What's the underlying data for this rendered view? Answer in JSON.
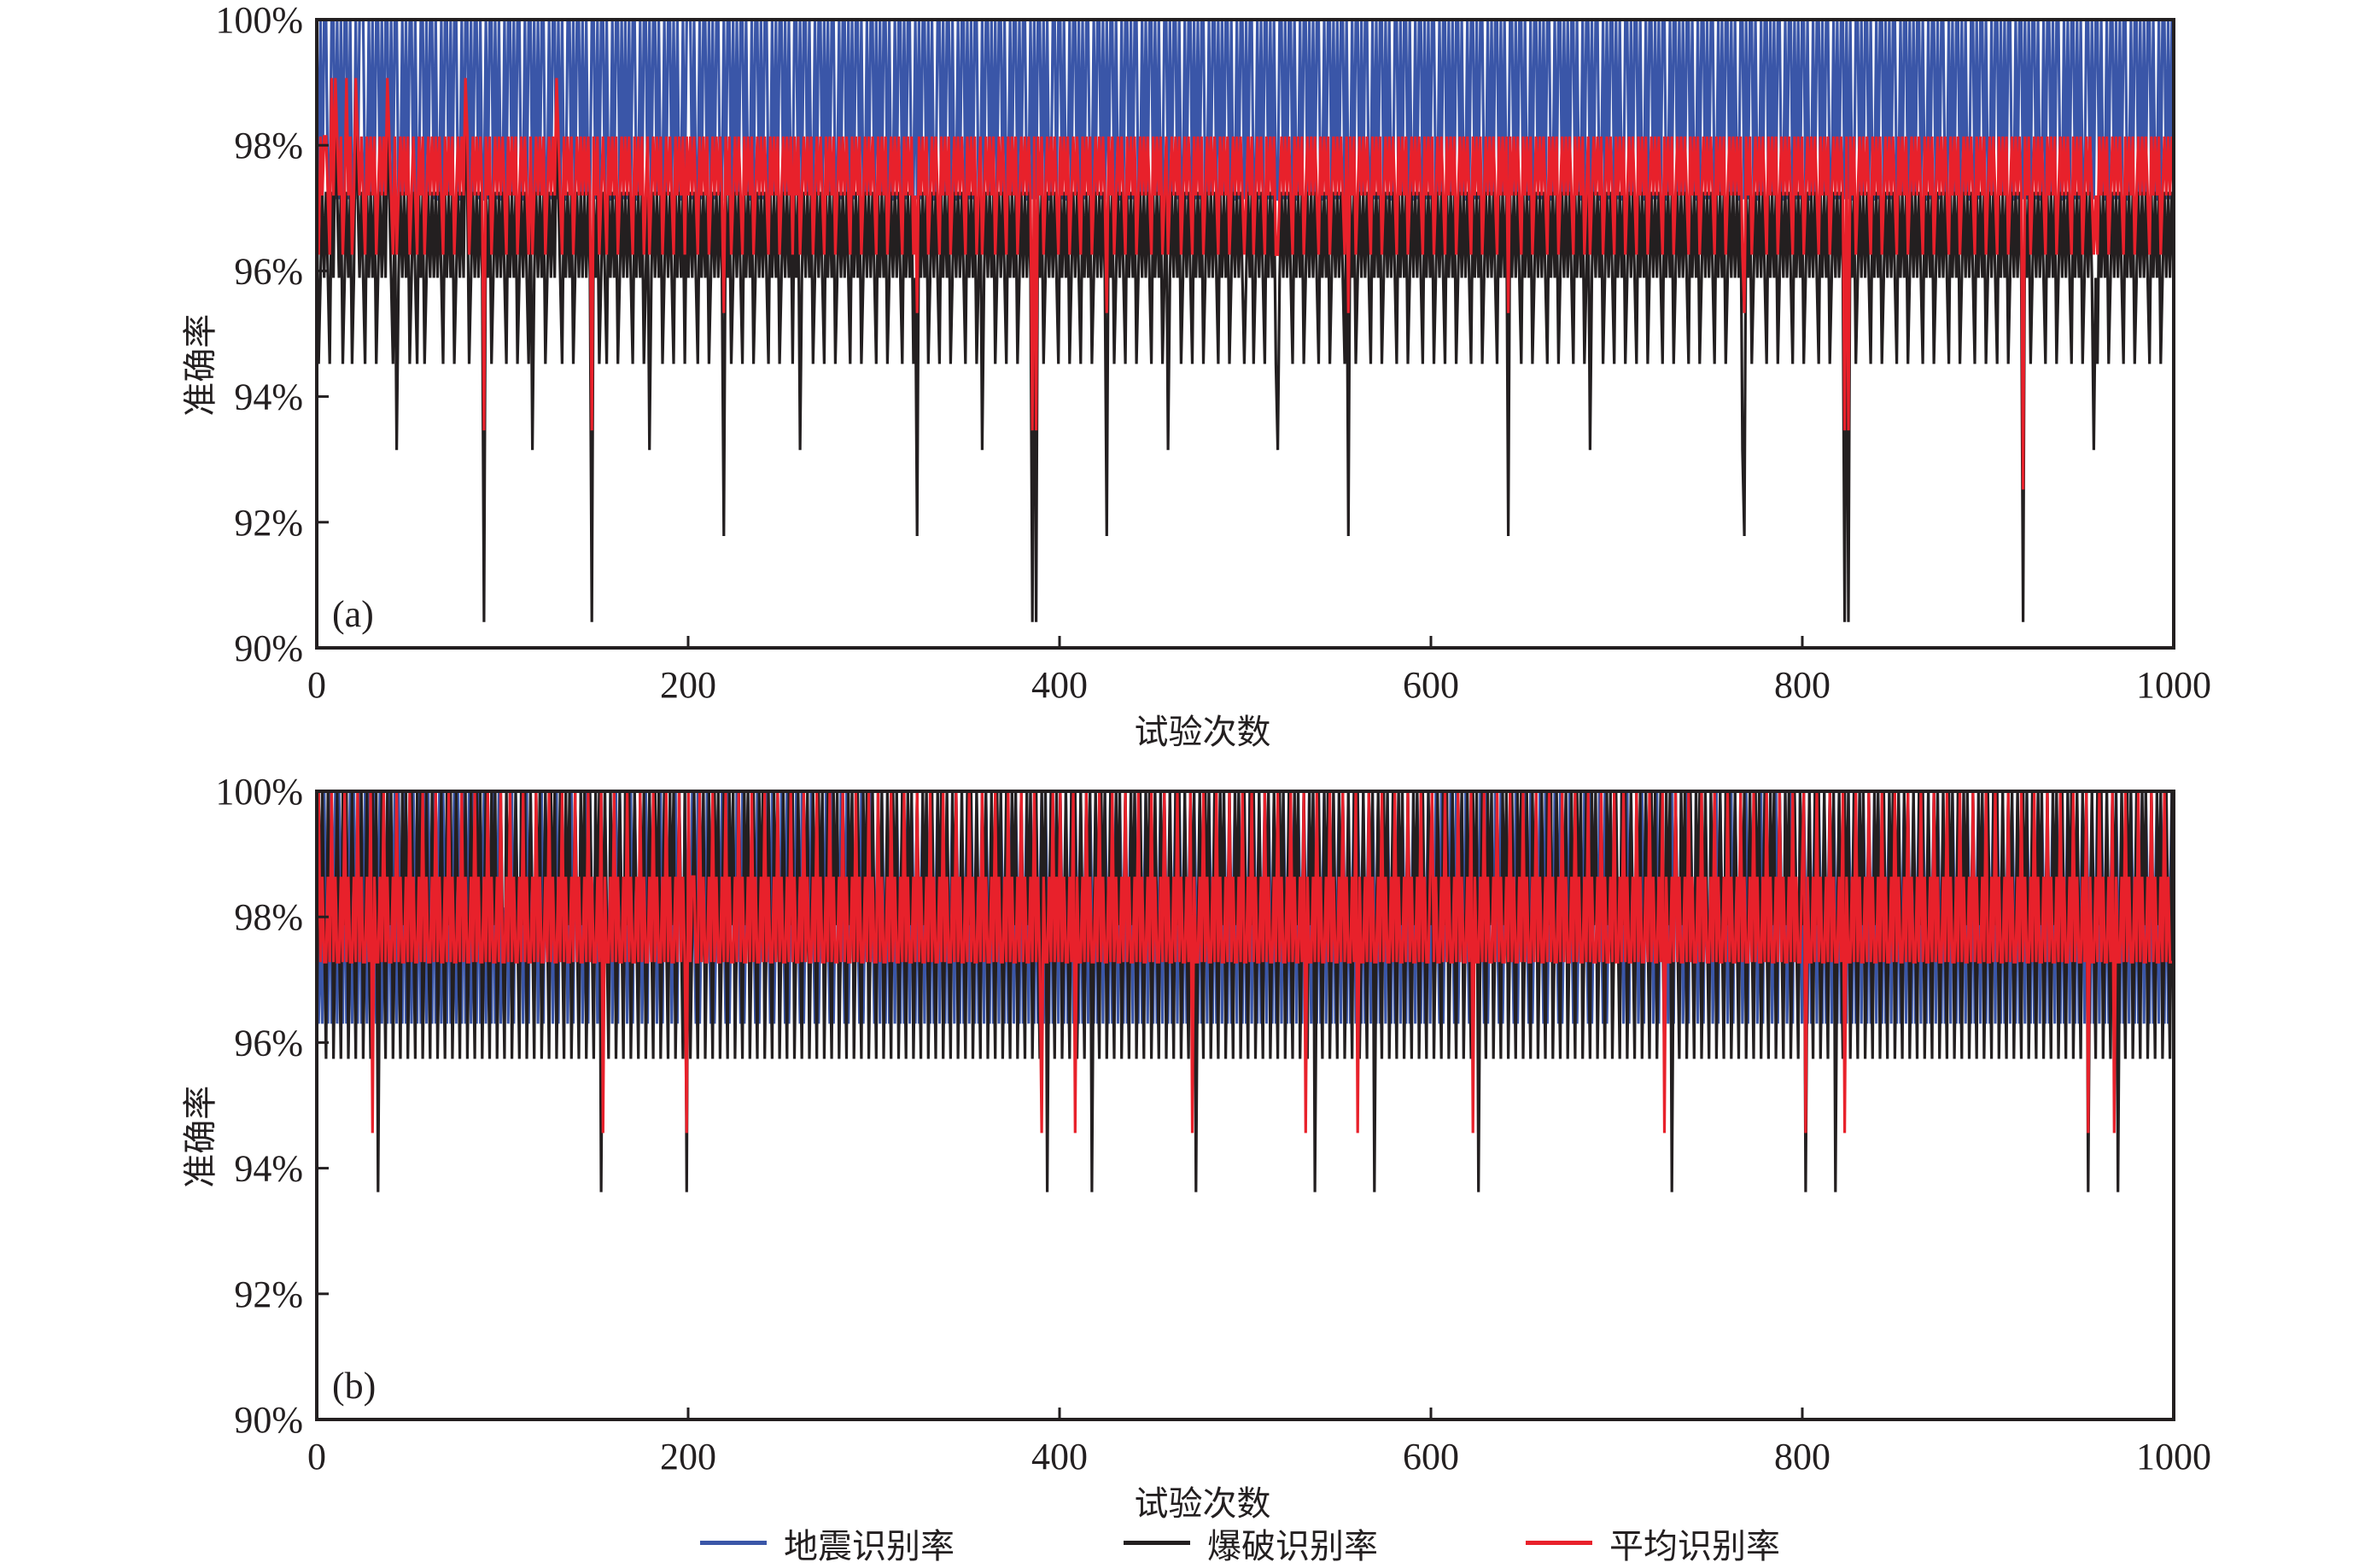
{
  "chart_data": [
    {
      "type": "line",
      "panel_label": "(a)",
      "title": "",
      "xlabel": "试验次数",
      "ylabel": "准确率",
      "xlim": [
        0,
        1000
      ],
      "ylim": [
        90,
        100
      ],
      "xticks": [
        0,
        200,
        400,
        600,
        800,
        1000
      ],
      "xtick_labels": [
        "0",
        "200",
        "400",
        "600",
        "800",
        "1000"
      ],
      "yticks": [
        90,
        92,
        94,
        96,
        98,
        100
      ],
      "ytick_labels": [
        "90%",
        "92%",
        "94%",
        "96%",
        "98%",
        "100%"
      ],
      "grid": false,
      "encoding_note": "each series value at trial i = levels[code digit i]; codes concatenated over 1000 trials",
      "series": [
        {
          "name": "地震识别率",
          "color": "#3a56a8",
          "levels": [
            100,
            97.14
          ],
          "codes": [
            "0101001100101010010110100011010100101001010011010100101100101001011010010100110100101001011010010101",
            "1010010100110100101010011010010101100101001010110010100101101001010101001101001010010110100101011010",
            "0010110100101010011010010101001011010010100110101001010110010100101101001010100110100101010010110100",
            "1010100101101001010011010100101011001010010110100101010011010010101001011010010100110101001010110010",
            "0101101001010100110100101010010110100101001101010010101100101001011010010101001101001010100101101001",
            "0100110101001010110010100101101001010100110100101010010110100101001101010010101100101001011010010101",
            "0011010010101001011010010100110101001010110010100101101001010100110100101010010110100101001101010010",
            "1011001010010110100101010011010010101001011010010100110101001010110010100101101001010100110100101010",
            "0101101001010011010100101011001010010110100101010011010010101001011010010100110101001010110010100101",
            "1010010101001101001010100101101001010011010100101011001010010110100101010011010010101001011010010101"
          ]
        },
        {
          "name": "爆破识别率",
          "color": "#231f20",
          "levels": [
            100,
            98.63,
            97.26,
            95.89,
            94.52,
            93.15,
            91.78,
            90.41
          ],
          "codes": [
            "2432323423123243232431232342323243232312342532323243234232432323232342323243232312432323237232432323",
            "2342323243232342532323243232312342323243232323237232432342323243232323423232432532323243232342323242",
            "3232342323243232323623243232342323243232323423232432323242325323232432323423232432323234232324323232",
            "3423232432323234232324362323243232342323243232323423232432532323243232342323243232323727232432323234",
            "2323243232342323243232323623243232342323243232323423232432532323243232342323243232323423232432323234",
            "3232432323423232453232323423232432323234232324323232342623243232323423232432323234232324323232342323",
            "2432323423232432323234232324323232342323262323234232324323232342323243232323423232432532323243232342",
            "3232432323423232432323234232324323232342323243232323423232432323232562324323232342323243232323423232",
            "4323232342323243232323727232432323234232324323232342323243232323423232432323234232324323232342323243",
            "2323423232432323237232432323234232324323232342323243232353423232432323234232324323232342323243232323"
          ]
        },
        {
          "name": "平均识别率",
          "color": "#e8212b",
          "levels": [
            100,
            99.07,
            98.14,
            97.2,
            96.26,
            95.33,
            94.39,
            93.46,
            92.52
          ],
          "codes": [
            "3423223413123243132431232342323243232312342432323243234232432323232342323243232312432323237232432323",
            "2342323243232342432323243232312342323243232323237232432342323243232323423232432432323243232342323242",
            "3232342323243232323523243232342323243232323423232432323242324323232432323423232432323234232324323232",
            "3423232432323234232324352323243232342323243232323423232432432323243232342323243232323727232432323234",
            "2323243232342323243232323523243232342323243232323423232432432323243232342323243232323423232432323234",
            "3232432323423232443232323423232432323234232324323232342523243232323423232432323234232324323232342323",
            "2432323423232432323234232324323232342323252323234232324323232342323243232323423232432432323243232342",
            "3232432323423232432323234232324323232342323243232323423232432323232452324323232342323243232323423232",
            "4323232342323243232323727232432323234232324323232342323243232323423232432323234232324323232342323243",
            "2323423232432323238232432323234232324323232342323243232343423232432323234232324323232342323243232323"
          ]
        }
      ]
    },
    {
      "type": "line",
      "panel_label": "(b)",
      "title": "",
      "xlabel": "试验次数",
      "ylabel": "准确率",
      "xlim": [
        0,
        1000
      ],
      "ylim": [
        90,
        100
      ],
      "xticks": [
        0,
        200,
        400,
        600,
        800,
        1000
      ],
      "xtick_labels": [
        "0",
        "200",
        "400",
        "600",
        "800",
        "1000"
      ],
      "yticks": [
        90,
        92,
        94,
        96,
        98,
        100
      ],
      "ytick_labels": [
        "90%",
        "92%",
        "94%",
        "96%",
        "98%",
        "100%"
      ],
      "grid": false,
      "encoding_note": "each series value at trial i = levels[code digit i]; codes concatenated over 1000 trials",
      "series": [
        {
          "name": "地震识别率",
          "color": "#3a56a8",
          "levels": [
            100,
            98.15,
            96.3
          ],
          "codes": [
            "0212012021020120210201202102012021020120210201202102012021020120210201202102012021020120210201202102",
            "1202102012021020120210201202102012021020120210201202102012021020120210201202102012021020120210201202",
            "0201202102012021020120210201202102012021020120210201202102012021020120210201202102012021020120210201",
            "2102012021020120210201202102012021020120210201202102012021020120210201202102012021020120210201202102",
            "0120210201202102012021020120210201202102012021020120210201202102012021020120210201202102012021020120",
            "2102012021020120210201202102012021020120210201202102012021020120210201202102012021020120210201202102",
            "0201202102012021020120210201202102012021020120210201202102012021020120210201202102012021020120210201",
            "1202102012021020120210201202102012021020120210201202102012021020120210201202102012021020120210201202",
            "0120210201202102012021020120210201202102012021020120210201202102012021020120210201202102012021020120",
            "2102012021020120210201202102012021020120210201202102012021020120210201202102012021020120210201202102"
          ]
        },
        {
          "name": "爆破识别率",
          "color": "#231f20",
          "levels": [
            100,
            97.87,
            95.74,
            93.62
          ],
          "codes": [
            "2010120102101201021012010210120103101201021012010210120102101201021012010210120102101201021012010210",
            "1201021012010210120102101201021012010210120102101201031012010210120102101201021012010210120102101203",
            "0210120102101201021012010210120102101201021012010210120102101201021012010210120102101201021012010210",
            "1201021012010210120102101201021012010210120102101201021012010210120102101201021012010210120103101201",
            "0210120102101201031012010210120102101201021012010210120102101201021012010310120102101201021012010210",
            "1201021012010210120102101201021012010310120102101201021012010210120103101201021012010210120102101201",
            "0210120102101201021012010310120102101201021012010210120102101201021012010210120102101201021012010210",
            "1201021012010210120102101201031012010210120102101201021012010210120102101201021012010210120102101201",
            "0310120102101201031012010210120102101201021012010210120102101201021012010210120102101201021012010210",
            "1201021012010210120102101201021012010210120102101201031012010210120103101201021012010210120102101202"
          ]
        },
        {
          "name": "平均识别率",
          "color": "#e8212b",
          "levels": [
            100,
            98.64,
            97.28,
            95.92,
            94.56
          ],
          "codes": [
            "2021221202122120212212021221204122120212212021221202122120212212021221202122120212212021221202122120",
            "2212021221202122120212212021221202122120212212021221204122120212212021221202122120212212021221202124",
            "0211220212212021221202122120212212021221202122120212212021221202122120212212021221202122120212212021",
            "2202122120212212021221202122120212212021221202122120212212021221202122120212212021221202124122120212",
            "0212212041221202122120212212021221202122120212212021221202122120212212041221202122120212212021221202",
            "2120212212021221202122120212212041221202122120212212021221204122120212212021221202122120212212021221",
            "0212212021221202122120412212021221202122120212212021221202122120212212021221202122120212212021221202",
            "2120212212021221202122120412212021221202122120212212021221202122120212212021221202122120212212021221",
            "0412212021221202122120412212021221202122120212212021221202122120212212021221202122120212212021221202",
            "2120212212021221202122120212212021221202122120212212041221202122120412212021221202122120212212021222"
          ]
        }
      ]
    }
  ],
  "legend": {
    "position": "bottom-center",
    "items": [
      {
        "label": "地震识别率",
        "color": "#3a56a8"
      },
      {
        "label": "爆破识别率",
        "color": "#231f20"
      },
      {
        "label": "平均识别率",
        "color": "#e8212b"
      }
    ]
  }
}
